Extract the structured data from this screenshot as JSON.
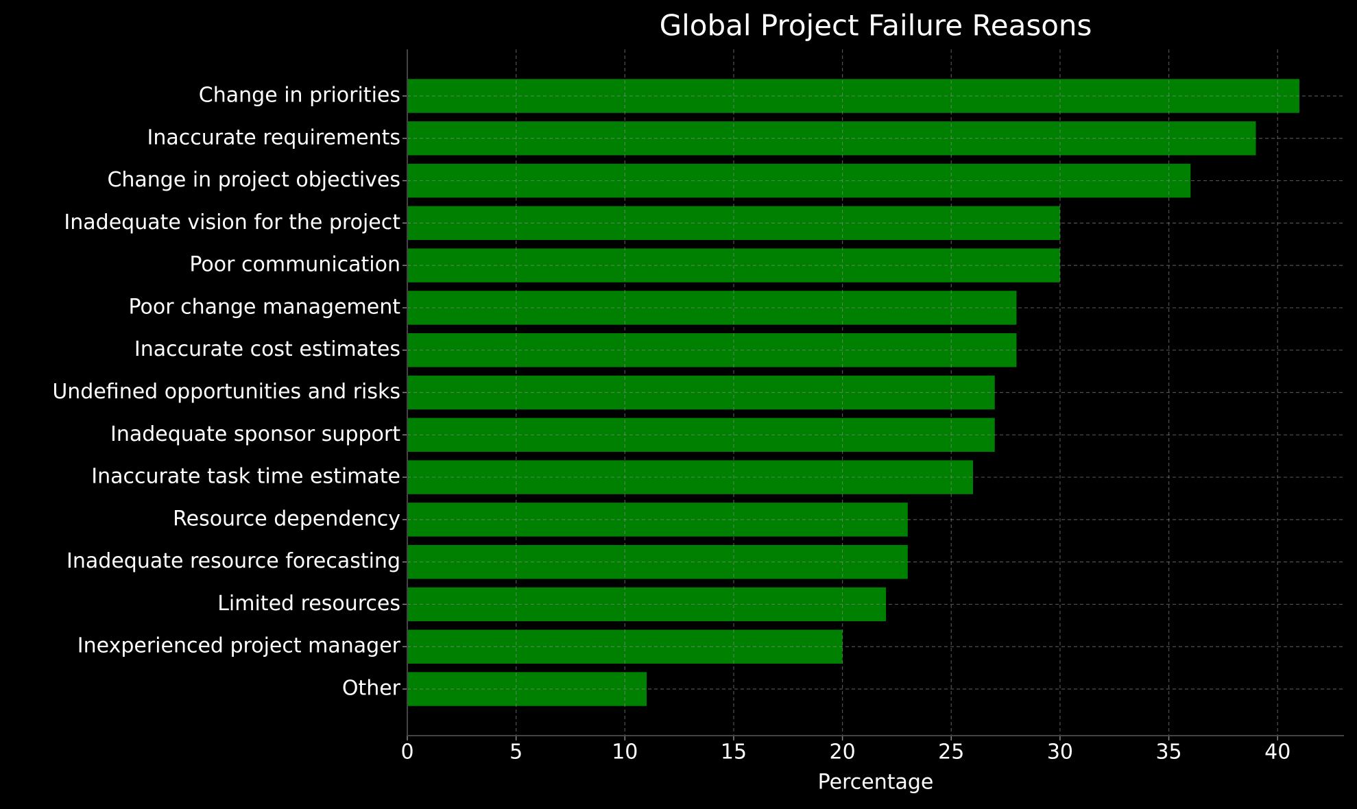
{
  "chart_data": {
    "type": "barh",
    "title": "Global Project Failure Reasons",
    "xlabel": "Percentage",
    "categories": [
      "Change in priorities",
      "Inaccurate requirements",
      "Change in project objectives",
      "Inadequate vision for the project",
      "Poor communication",
      "Poor change management",
      "Inaccurate cost estimates",
      "Undefined opportunities and risks",
      "Inadequate sponsor support",
      "Inaccurate task time estimate",
      "Resource dependency",
      "Inadequate resource forecasting",
      "Limited resources",
      "Inexperienced project manager",
      "Other"
    ],
    "values": [
      41,
      39,
      36,
      30,
      30,
      28,
      28,
      27,
      27,
      26,
      23,
      23,
      22,
      20,
      11
    ],
    "color": "#008000",
    "xlim": [
      0,
      43.05
    ],
    "xticks": [
      0,
      5,
      10,
      15,
      20,
      25,
      30,
      35,
      40
    ],
    "grid": true
  }
}
